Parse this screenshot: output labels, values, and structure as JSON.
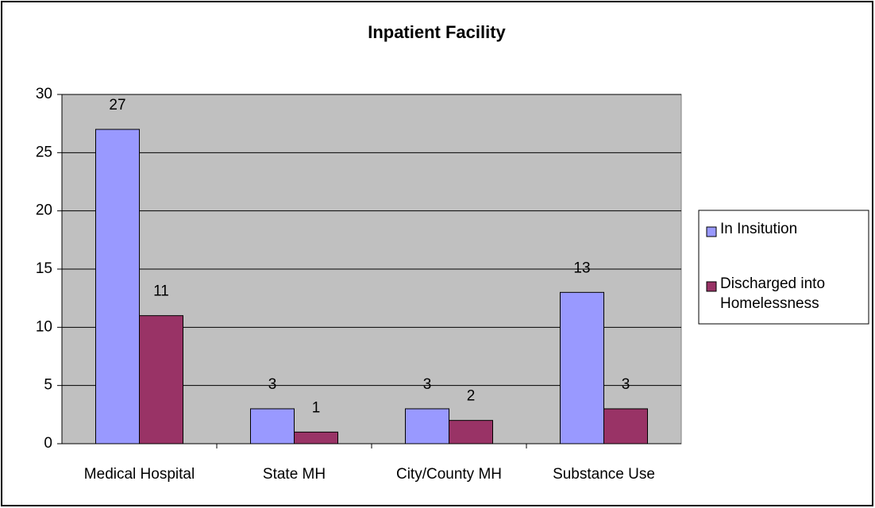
{
  "chart_data": {
    "type": "bar",
    "title": "Inpatient Facility",
    "categories": [
      "Medical Hospital",
      "State MH",
      "City/County MH",
      "Substance Use"
    ],
    "series": [
      {
        "name": "In Insitution",
        "color": "#9999ff",
        "values": [
          27,
          3,
          3,
          13
        ]
      },
      {
        "name": "Discharged into Homelessness",
        "color": "#993366",
        "values": [
          11,
          1,
          2,
          3
        ]
      }
    ],
    "ylim": [
      0,
      30
    ],
    "yticks": [
      0,
      5,
      10,
      15,
      20,
      25,
      30
    ],
    "grid": true,
    "legend": "right"
  }
}
